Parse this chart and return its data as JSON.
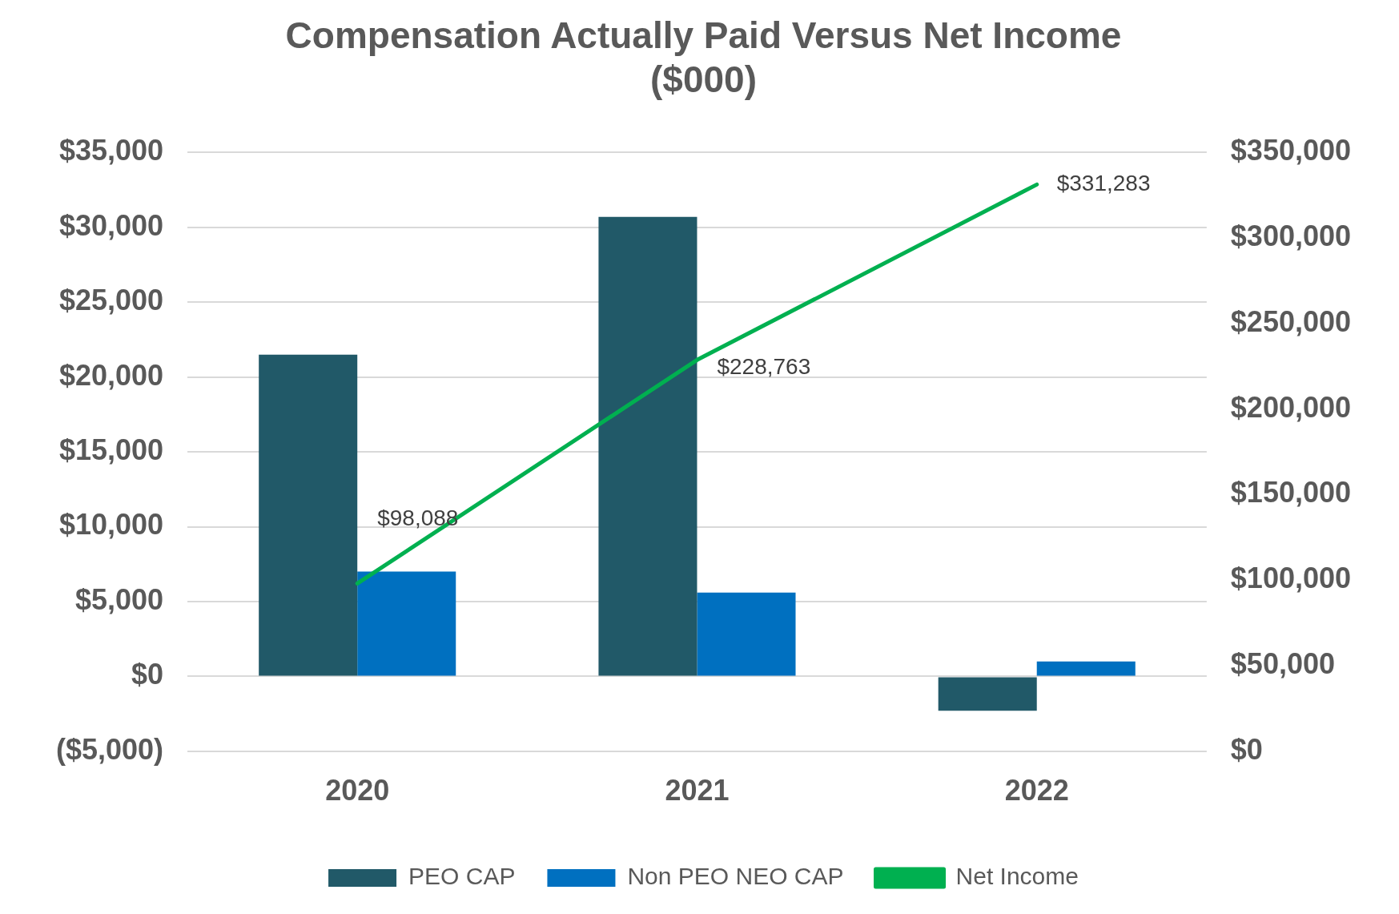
{
  "chart_data": {
    "type": "bar",
    "title": [
      "Compensation Actually Paid Versus Net Income",
      "($000)"
    ],
    "categories": [
      "2020",
      "2021",
      "2022"
    ],
    "series": [
      {
        "name": "PEO CAP",
        "color": "#215968",
        "values": [
          21500,
          30700,
          -2300
        ]
      },
      {
        "name": "Non PEO NEO CAP",
        "color": "#0070c0",
        "values": [
          7000,
          5600,
          1000
        ]
      },
      {
        "name": "Net Income",
        "type": "line",
        "axis": "y2",
        "color": "#00b050",
        "values": [
          98088,
          228763,
          331283
        ],
        "value_labels": [
          "$98,088",
          "$228,763",
          "$331,283"
        ]
      }
    ],
    "ylim": [
      -5000,
      35000
    ],
    "yticks": [
      {
        "value": -5000,
        "label": "($5,000)"
      },
      {
        "value": 0,
        "label": "$0"
      },
      {
        "value": 5000,
        "label": "$5,000"
      },
      {
        "value": 10000,
        "label": "$10,000"
      },
      {
        "value": 15000,
        "label": "$15,000"
      },
      {
        "value": 20000,
        "label": "$20,000"
      },
      {
        "value": 25000,
        "label": "$25,000"
      },
      {
        "value": 30000,
        "label": "$30,000"
      },
      {
        "value": 35000,
        "label": "$35,000"
      }
    ],
    "y2lim": [
      0,
      350000
    ],
    "y2ticks": [
      {
        "value": 0,
        "label": "$0"
      },
      {
        "value": 50000,
        "label": "$50,000"
      },
      {
        "value": 100000,
        "label": "$100,000"
      },
      {
        "value": 150000,
        "label": "$150,000"
      },
      {
        "value": 200000,
        "label": "$200,000"
      },
      {
        "value": 250000,
        "label": "$250,000"
      },
      {
        "value": 300000,
        "label": "$300,000"
      },
      {
        "value": 350000,
        "label": "$350,000"
      }
    ],
    "grid": "y",
    "legend": "bottom",
    "marker": "none",
    "line_style": "solid"
  }
}
